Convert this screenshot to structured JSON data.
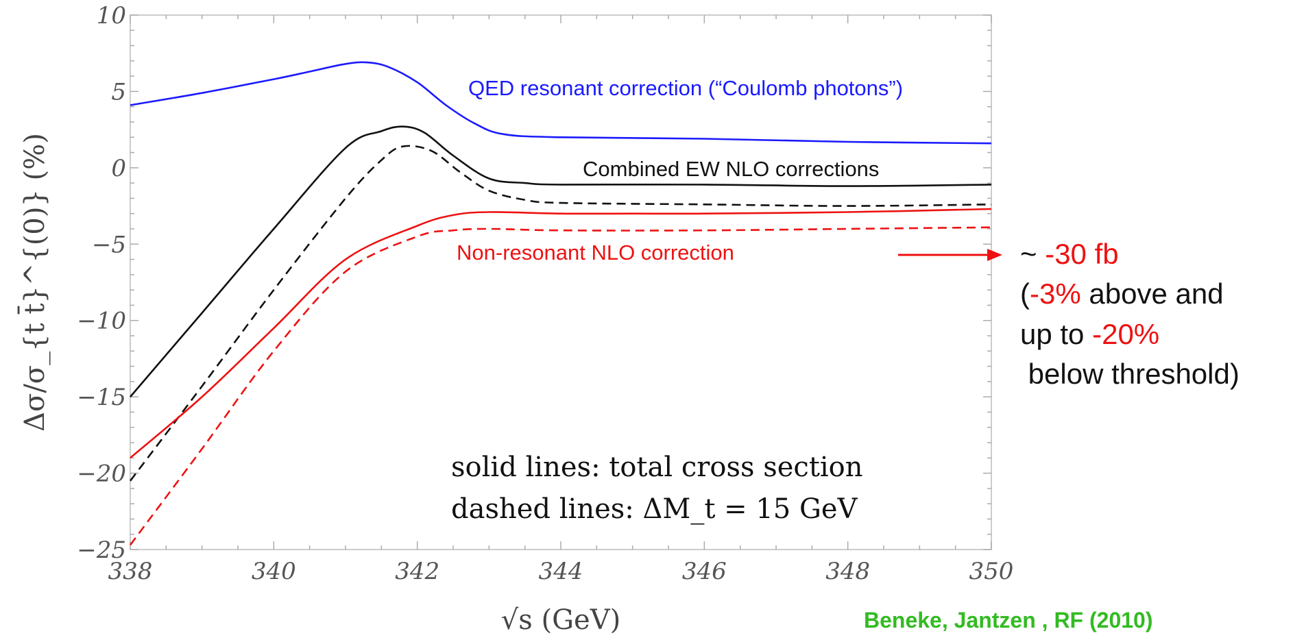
{
  "chart_data": {
    "type": "line",
    "xlabel": "√s (GeV)",
    "ylabel": "Δσ/σ_{t t̄}^{(0)} (%)",
    "xlim": [
      338,
      350
    ],
    "ylim": [
      -25,
      10
    ],
    "xticks": [
      "338",
      "340",
      "342",
      "344",
      "346",
      "348",
      "350"
    ],
    "yticks": [
      "10",
      "5",
      "0",
      "−5",
      "−10",
      "−15",
      "−20",
      "−25"
    ],
    "series": [
      {
        "name": "QED resonant correction (“Coulomb photons”)",
        "color": "#1a1aff",
        "dash": false,
        "x": [
          338,
          339,
          340,
          340.5,
          341,
          341.3,
          341.6,
          342,
          342.4,
          342.8,
          343.2,
          344,
          346,
          348,
          350
        ],
        "y": [
          4.1,
          4.9,
          5.8,
          6.3,
          6.8,
          6.9,
          6.6,
          5.6,
          4.1,
          2.9,
          2.2,
          2.0,
          1.9,
          1.7,
          1.6
        ]
      },
      {
        "name": "Combined EW NLO corrections",
        "color": "#111111",
        "dash": false,
        "x": [
          338,
          339,
          340,
          341,
          341.5,
          341.8,
          342.1,
          342.5,
          343,
          343.5,
          344,
          346,
          348,
          350
        ],
        "y": [
          -15,
          -9.5,
          -4,
          1.3,
          2.4,
          2.7,
          2.3,
          0.8,
          -0.7,
          -1.0,
          -1.1,
          -1.1,
          -1.2,
          -1.1
        ]
      },
      {
        "name": "",
        "color": "#111111",
        "dash": true,
        "x": [
          338,
          339,
          340,
          341,
          341.5,
          341.8,
          342.2,
          342.6,
          343,
          343.5,
          344,
          346,
          348,
          350
        ],
        "y": [
          -20.5,
          -14.3,
          -8,
          -2,
          0.5,
          1.4,
          1.1,
          -0.3,
          -1.5,
          -2.1,
          -2.3,
          -2.4,
          -2.5,
          -2.4
        ]
      },
      {
        "name": "Non-resonant NLO correction",
        "color": "#ee1111",
        "dash": false,
        "x": [
          338,
          339,
          340,
          341,
          342,
          342.5,
          343,
          344,
          345,
          346,
          348,
          350
        ],
        "y": [
          -19,
          -15,
          -10.5,
          -6,
          -3.8,
          -3.1,
          -2.9,
          -3.0,
          -3.0,
          -3.0,
          -2.9,
          -2.7
        ]
      },
      {
        "name": "",
        "color": "#ee1111",
        "dash": true,
        "x": [
          338,
          339,
          340,
          341,
          342,
          342.5,
          343,
          344,
          346,
          348,
          350
        ],
        "y": [
          -24.7,
          -18.4,
          -12,
          -6.8,
          -4.5,
          -4.1,
          -4.0,
          -4.1,
          -4.1,
          -4.0,
          -3.9
        ]
      }
    ],
    "annotations": {
      "note_line1": "solid lines: total cross section",
      "note_line2": "dashed lines: ΔM_t = 15 GeV"
    }
  },
  "side_note": {
    "line1_prefix": "~ ",
    "line1_value": "-30 fb",
    "line2_open": "(",
    "line2_value": "-3%",
    "line2_rest": " above and",
    "line3_prefix": "up to ",
    "line3_value": "-20%",
    "line4": " below threshold)"
  },
  "credit": "Beneke, Jantzen , RF (2010)",
  "colors": {
    "blue": "#1a1aff",
    "black": "#111111",
    "red": "#ee1111",
    "credit": "#33bb22"
  }
}
